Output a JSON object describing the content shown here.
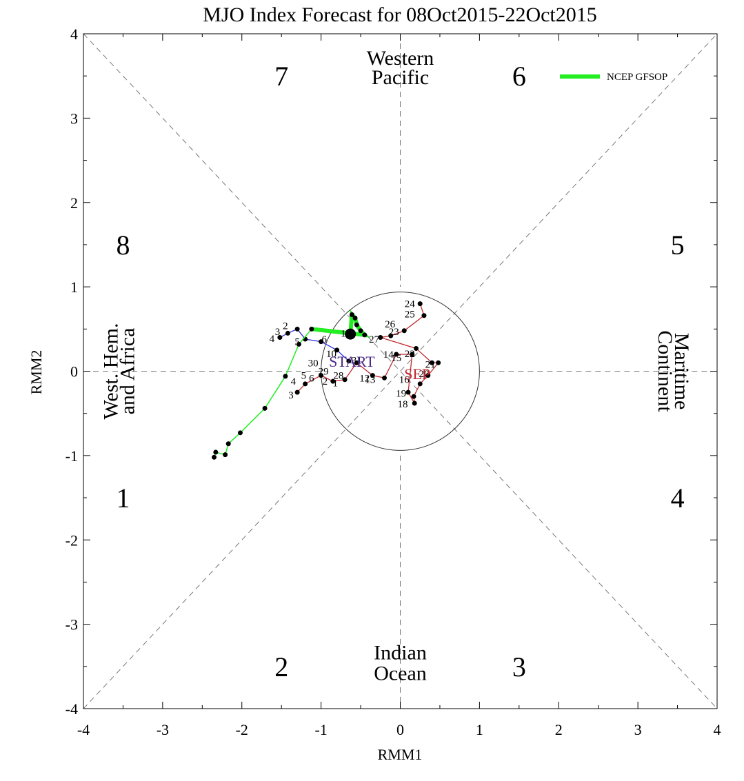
{
  "chart_data": {
    "type": "line",
    "title": "MJO Index Forecast for 08Oct2015-22Oct2015",
    "xlabel": "RMM1",
    "ylabel": "RMM2",
    "xlim": [
      -4,
      4
    ],
    "ylim": [
      -4,
      4
    ],
    "xticks": [
      "-4",
      "-3",
      "-2",
      "-1",
      "0",
      "1",
      "2",
      "3",
      "4"
    ],
    "yticks": [
      "-4",
      "-3",
      "-2",
      "-1",
      "0",
      "1",
      "2",
      "3",
      "4"
    ],
    "phases": [
      {
        "label": "1",
        "x": -3.5,
        "y": -1.5
      },
      {
        "label": "2",
        "x": -1.5,
        "y": -3.5
      },
      {
        "label": "3",
        "x": 1.5,
        "y": -3.5
      },
      {
        "label": "4",
        "x": 3.5,
        "y": -1.5
      },
      {
        "label": "5",
        "x": 3.5,
        "y": 1.5
      },
      {
        "label": "6",
        "x": 1.5,
        "y": 3.5
      },
      {
        "label": "7",
        "x": -1.5,
        "y": 3.5
      },
      {
        "label": "8",
        "x": -3.5,
        "y": 1.5
      }
    ],
    "regions": {
      "top": [
        "Western",
        "Pacific"
      ],
      "bottom": [
        "Indian",
        "Ocean"
      ],
      "left": [
        "West. Hem.",
        "and Africa"
      ],
      "right": [
        "Maritime",
        "Continent"
      ]
    },
    "legend": {
      "label": "NCEP GFSOP",
      "position": "top-right"
    },
    "series": [
      {
        "name": "NCEP GFSOP",
        "color": "#22ee22",
        "points": [
          [
            -0.63,
            0.44
          ],
          [
            -0.61,
            0.67
          ],
          [
            -0.57,
            0.63
          ],
          [
            -0.55,
            0.55
          ],
          [
            -0.5,
            0.48
          ],
          [
            -0.45,
            0.43
          ],
          [
            -1.12,
            0.5
          ],
          [
            -1.28,
            0.32
          ],
          [
            -1.45,
            -0.06
          ],
          [
            -1.71,
            -0.44
          ],
          [
            -2.02,
            -0.73
          ],
          [
            -2.17,
            -0.86
          ],
          [
            -2.21,
            -0.99
          ],
          [
            -2.33,
            -0.96
          ],
          [
            -2.35,
            -1.02
          ]
        ]
      },
      {
        "name": "",
        "color": "#c0282d",
        "points": [
          [
            0.25,
            0.8
          ],
          [
            0.3,
            0.66
          ],
          [
            0.05,
            0.48
          ],
          [
            -0.12,
            0.42
          ],
          [
            -0.25,
            0.4
          ],
          [
            0.2,
            0.27
          ],
          [
            0.4,
            0.1
          ],
          [
            0.48,
            0.1
          ],
          [
            0.35,
            -0.05
          ],
          [
            0.25,
            -0.15
          ],
          [
            0.17,
            -0.3
          ],
          [
            0.18,
            -0.38
          ],
          [
            0.1,
            -0.25
          ],
          [
            0.15,
            0.2
          ],
          [
            -0.05,
            0.2
          ],
          [
            -0.2,
            -0.08
          ],
          [
            -0.35,
            -0.05
          ],
          [
            -0.55,
            0.1
          ],
          [
            -0.7,
            -0.1
          ],
          [
            -0.85,
            -0.12
          ],
          [
            -1.0,
            -0.05
          ],
          [
            -1.2,
            -0.15
          ],
          [
            -1.3,
            -0.25
          ]
        ]
      },
      {
        "name": "",
        "color": "#2d2de0",
        "points": [
          [
            -0.65,
            0.12
          ],
          [
            -0.8,
            0.25
          ],
          [
            -1.0,
            0.35
          ],
          [
            -1.2,
            0.38
          ],
          [
            -1.3,
            0.5
          ],
          [
            -1.42,
            0.45
          ],
          [
            -1.52,
            0.4
          ]
        ]
      }
    ],
    "point_labels": [
      {
        "text": "24",
        "x": 0.12,
        "y": 0.8
      },
      {
        "text": "25",
        "x": 0.12,
        "y": 0.68
      },
      {
        "text": "26",
        "x": -0.13,
        "y": 0.56
      },
      {
        "text": "23",
        "x": -0.08,
        "y": 0.47
      },
      {
        "text": "27",
        "x": -0.33,
        "y": 0.38
      },
      {
        "text": "1",
        "x": -0.72,
        "y": 0.45
      },
      {
        "text": "2",
        "x": -1.45,
        "y": 0.54
      },
      {
        "text": "3",
        "x": -1.55,
        "y": 0.47
      },
      {
        "text": "4",
        "x": -1.62,
        "y": 0.39
      },
      {
        "text": "5",
        "x": -1.3,
        "y": 0.35
      },
      {
        "text": "6",
        "x": -0.96,
        "y": 0.38
      },
      {
        "text": "10",
        "x": -0.87,
        "y": 0.21
      },
      {
        "text": "30",
        "x": -1.1,
        "y": 0.1
      },
      {
        "text": "31",
        "x": -0.55,
        "y": 0.13
      },
      {
        "text": "14",
        "x": -0.15,
        "y": 0.2
      },
      {
        "text": "15",
        "x": -0.05,
        "y": 0.16
      },
      {
        "text": "22",
        "x": 0.12,
        "y": 0.21
      },
      {
        "text": "21",
        "x": 0.38,
        "y": 0.08
      },
      {
        "text": "20",
        "x": 0.3,
        "y": -0.03
      },
      {
        "text": "16",
        "x": 0.05,
        "y": -0.1
      },
      {
        "text": "19",
        "x": 0.01,
        "y": -0.26
      },
      {
        "text": "18",
        "x": 0.03,
        "y": -0.39
      },
      {
        "text": "12",
        "x": -0.45,
        "y": -0.08
      },
      {
        "text": "13",
        "x": -0.38,
        "y": -0.1
      },
      {
        "text": "29",
        "x": -0.97,
        "y": 0.0
      },
      {
        "text": "28",
        "x": -0.78,
        "y": -0.05
      },
      {
        "text": "5",
        "x": -1.22,
        "y": -0.05
      },
      {
        "text": "6",
        "x": -1.12,
        "y": -0.08
      },
      {
        "text": "4",
        "x": -1.35,
        "y": -0.12
      },
      {
        "text": "3",
        "x": -1.38,
        "y": -0.28
      },
      {
        "text": "2",
        "x": -0.95,
        "y": -0.12
      },
      {
        "text": "1",
        "x": -0.82,
        "y": -0.14
      }
    ],
    "start_label": {
      "text": "START",
      "x": -0.9,
      "y": 0.12,
      "color": "#4b2a8a"
    },
    "end_label": {
      "text": "SEP",
      "x": 0.05,
      "y": -0.03,
      "color": "#c0282d"
    },
    "circle_radius": 1
  }
}
